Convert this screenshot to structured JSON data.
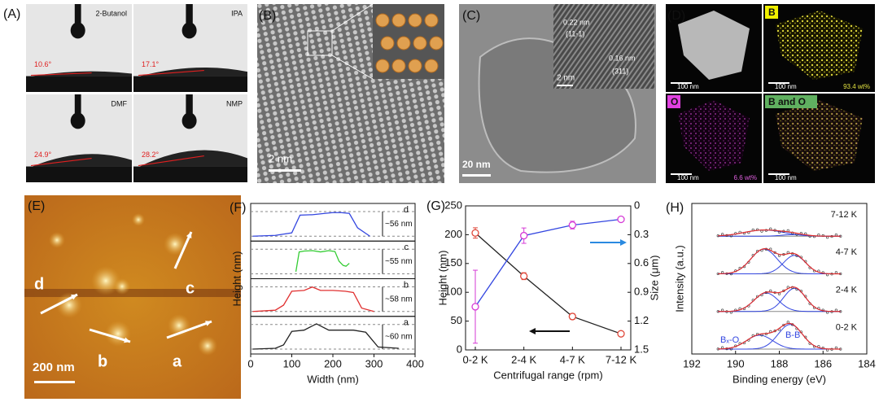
{
  "panels": {
    "A": {
      "label": "(A)",
      "images": [
        {
          "solvent": "2-Butanol",
          "angle": "10.6°"
        },
        {
          "solvent": "IPA",
          "angle": "17.1°"
        },
        {
          "solvent": "DMF",
          "angle": "24.9°"
        },
        {
          "solvent": "NMP",
          "angle": "28.2°"
        }
      ]
    },
    "B": {
      "label": "(B)",
      "scale": "2 nm"
    },
    "C": {
      "label": "(C)",
      "d1": "0.22 nm",
      "plane1": "(11-1)",
      "d2": "0.16 nm",
      "plane2": "(311)",
      "inset_scale": "2 nm",
      "scale": "20 nm"
    },
    "D": {
      "label": "(D)",
      "maps": [
        {
          "scale": "100 nm"
        },
        {
          "element": "B",
          "scale": "100 nm",
          "content": "93.4 wt%"
        },
        {
          "element": "O",
          "scale": "100 nm",
          "content": "6.6 wt%"
        },
        {
          "element": "B and O",
          "scale": "100 nm"
        }
      ]
    },
    "E": {
      "label": "(E)",
      "profiles": [
        "d",
        "c",
        "b",
        "a"
      ],
      "scale": "200 nm"
    }
  },
  "chart_data": [
    {
      "type": "profile",
      "label": "(F)",
      "xlabel": "Width (nm)",
      "ylabel": "Height (nm)",
      "xlim": [
        0,
        400
      ],
      "xticks": [
        0,
        100,
        200,
        300,
        400
      ],
      "series": [
        {
          "name": "d",
          "color": "#3346e0",
          "height_label": "~56 nm",
          "x": [
            5,
            60,
            100,
            120,
            150,
            180,
            200,
            220,
            240,
            260,
            290
          ],
          "values": [
            0,
            2,
            8,
            50,
            51,
            54,
            56,
            56,
            54,
            20,
            0
          ]
        },
        {
          "name": "c",
          "color": "#33cc33",
          "height_label": "~55 nm",
          "x": [
            110,
            118,
            130,
            150,
            170,
            190,
            205,
            215,
            225,
            232,
            240
          ],
          "values": [
            5,
            52,
            54,
            55,
            52,
            55,
            53,
            30,
            20,
            18,
            25
          ]
        },
        {
          "name": "b",
          "color": "#e03030",
          "height_label": "~58 nm",
          "x": [
            5,
            60,
            80,
            100,
            130,
            150,
            170,
            200,
            230,
            250,
            270,
            300
          ],
          "values": [
            0,
            3,
            15,
            48,
            50,
            58,
            50,
            50,
            48,
            45,
            8,
            0
          ]
        },
        {
          "name": "a",
          "color": "#222222",
          "height_label": "~60 nm",
          "x": [
            5,
            60,
            80,
            100,
            130,
            160,
            190,
            220,
            250,
            280,
            310,
            360
          ],
          "values": [
            0,
            2,
            10,
            42,
            45,
            60,
            45,
            45,
            45,
            40,
            5,
            2
          ]
        }
      ]
    },
    {
      "type": "dual_line",
      "label": "(G)",
      "xlabel": "Centrifugal range (rpm)",
      "ylabel": "Height (nm)",
      "y2label": "Size (μm)",
      "categories": [
        "0-2 K",
        "2-4 K",
        "4-7 K",
        "7-12 K"
      ],
      "ylim": [
        0,
        250
      ],
      "yticks": [
        0,
        50,
        100,
        150,
        200,
        250
      ],
      "y2lim": [
        1.5,
        0
      ],
      "y2ticks": [
        0,
        0.3,
        0.6,
        0.9,
        1.2,
        1.5
      ],
      "series": [
        {
          "axis": "y",
          "color": "#222222",
          "marker_color": "#e0483a",
          "values": [
            203,
            128,
            58,
            28
          ],
          "errors": [
            9,
            6,
            5,
            4
          ]
        },
        {
          "axis": "y2",
          "color": "#3346e0",
          "marker_color": "#d63ad6",
          "values": [
            1.05,
            0.31,
            0.2,
            0.14
          ],
          "errors": [
            0.38,
            0.08,
            0.04,
            0.02
          ]
        }
      ]
    },
    {
      "type": "xps",
      "label": "(H)",
      "xlabel": "Binding energy (eV)",
      "ylabel": "Intensity (a.u.)",
      "xlim": [
        192,
        184
      ],
      "xticks": [
        192,
        190,
        188,
        186,
        184
      ],
      "fit_color": "#e03030",
      "component_color": "#3346e0",
      "annotations": [
        "Bₓ-O",
        "B-B"
      ],
      "series": [
        {
          "name": "7-12 K",
          "components": [
            {
              "center": 188.7,
              "height": 0.2,
              "width": 0.9
            },
            {
              "center": 187.4,
              "height": 0.05,
              "width": 0.5
            }
          ]
        },
        {
          "name": "4-7 K",
          "components": [
            {
              "center": 188.7,
              "height": 0.8,
              "width": 0.6
            },
            {
              "center": 187.3,
              "height": 0.6,
              "width": 0.5
            }
          ]
        },
        {
          "name": "2-4 K",
          "components": [
            {
              "center": 188.6,
              "height": 0.6,
              "width": 0.55
            },
            {
              "center": 187.3,
              "height": 0.75,
              "width": 0.5
            }
          ]
        },
        {
          "name": "0-2 K",
          "components": [
            {
              "center": 188.9,
              "height": 0.45,
              "width": 0.6
            },
            {
              "center": 187.5,
              "height": 0.8,
              "width": 0.55
            }
          ]
        }
      ]
    }
  ]
}
